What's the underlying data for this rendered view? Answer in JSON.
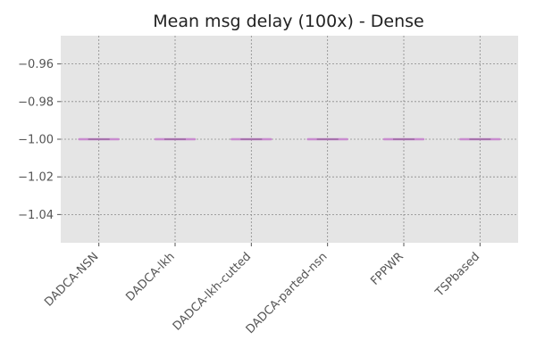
{
  "chart_data": {
    "type": "box",
    "title": "Mean msg delay (100x) - Dense",
    "xlabel": "",
    "ylabel": "",
    "categories": [
      "DADCA-NSN",
      "DADCA-lkh",
      "DADCA-lkh-cutted",
      "DADCA-parted-nsn",
      "FPPWR",
      "TSPbased"
    ],
    "values": [
      -1.0,
      -1.0,
      -1.0,
      -1.0,
      -1.0,
      -1.0
    ],
    "ylim": [
      -1.055,
      -0.945
    ],
    "yticks": [
      -0.96,
      -0.98,
      -1.0,
      -1.02,
      -1.04
    ],
    "ytick_labels": [
      "−0.96",
      "−0.98",
      "−1.00",
      "−1.02",
      "−1.04"
    ],
    "grid": true,
    "box_color": "#c98ccf",
    "median_color": "#9a6aa0",
    "background_color": "#e5e5e5",
    "grid_color": "#8a8a8a"
  }
}
